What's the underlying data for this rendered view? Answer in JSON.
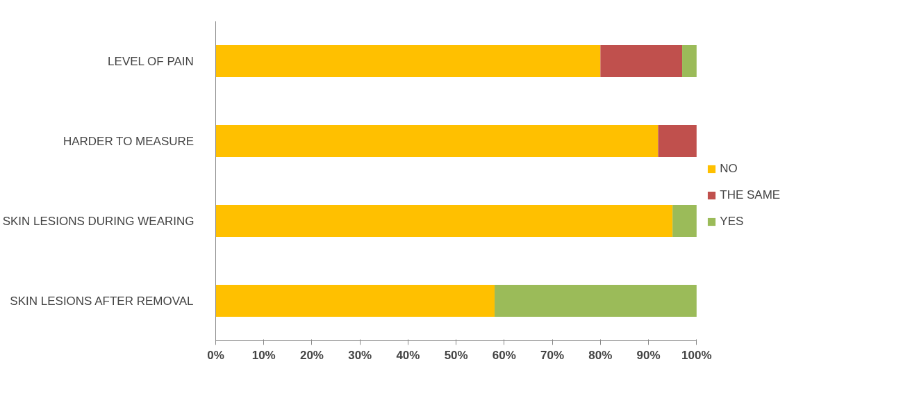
{
  "chart_data": {
    "type": "bar",
    "orientation": "horizontal",
    "stacked": true,
    "categories": [
      "LEVEL OF PAIN",
      "HARDER TO MEASURE",
      "SKIN LESIONS DURING WEARING",
      "SKIN LESIONS AFTER REMOVAL"
    ],
    "series": [
      {
        "name": "NO",
        "color": "#ffc000",
        "values": [
          80,
          92,
          95,
          58
        ]
      },
      {
        "name": "THE SAME",
        "color": "#c0504d",
        "values": [
          17,
          8,
          null,
          null
        ]
      },
      {
        "name": "YES",
        "color": "#9bbb59",
        "values": [
          3,
          null,
          5,
          42
        ]
      }
    ],
    "xlim": [
      0,
      100
    ],
    "xticks": [
      {
        "value": 0,
        "label": "0%"
      },
      {
        "value": 10,
        "label": "10%"
      },
      {
        "value": 20,
        "label": "20%"
      },
      {
        "value": 30,
        "label": "30%"
      },
      {
        "value": 40,
        "label": "40%"
      },
      {
        "value": 50,
        "label": "50%"
      },
      {
        "value": 60,
        "label": "60%"
      },
      {
        "value": 70,
        "label": "70%"
      },
      {
        "value": 80,
        "label": "80%"
      },
      {
        "value": 90,
        "label": "90%"
      },
      {
        "value": 100,
        "label": "100%"
      }
    ],
    "grid": false,
    "legend": "right"
  }
}
